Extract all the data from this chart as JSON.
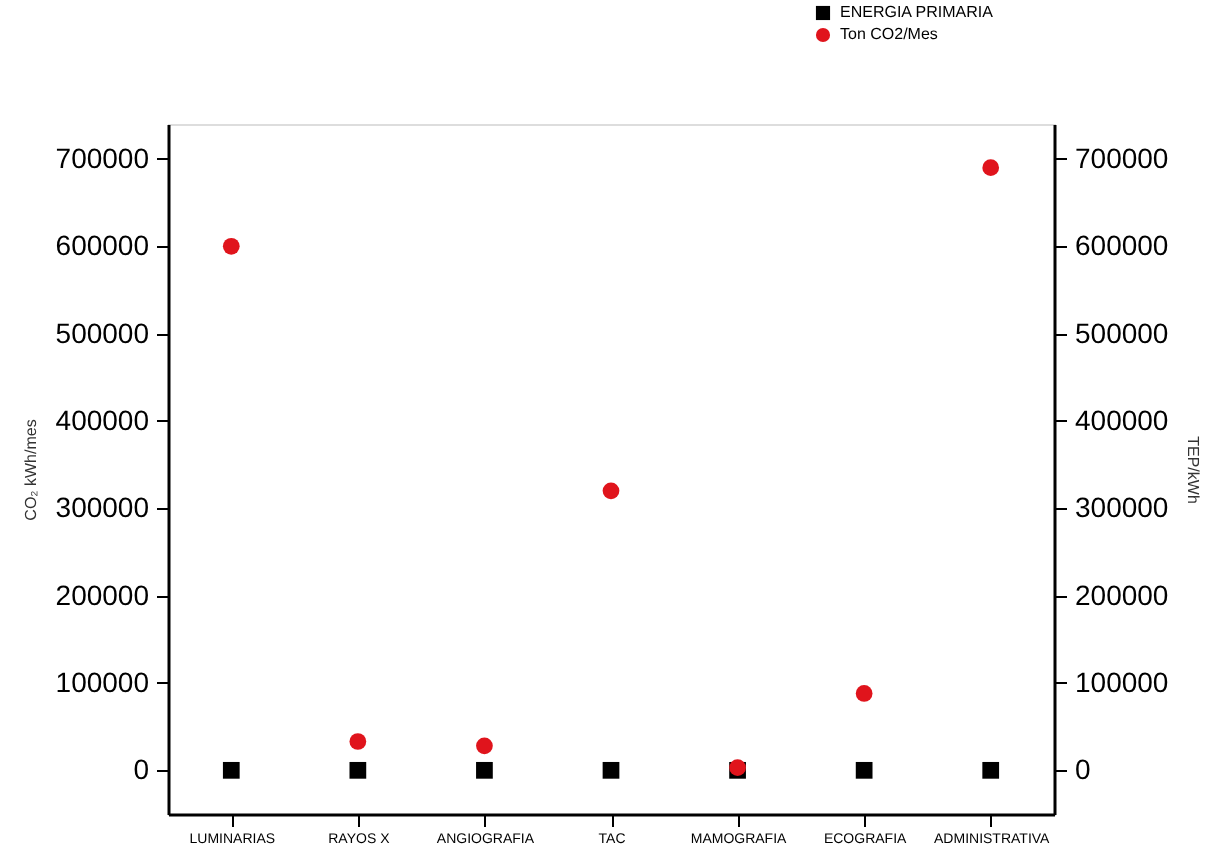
{
  "chart_data": {
    "type": "scatter",
    "categories": [
      "LUMINARIAS",
      "RAYOS X",
      "ANGIOGRAFIA",
      "TAC",
      "MAMOGRAFIA",
      "ECOGRAFIA",
      "ADMINISTRATIVA"
    ],
    "series": [
      {
        "name": "ENERGIA PRIMARIA",
        "color": "#000000",
        "marker": "square",
        "axis": "y2",
        "values": [
          0,
          0,
          0,
          0,
          0,
          0,
          0
        ]
      },
      {
        "name": "Ton CO2/Mes",
        "color": "#e0141c",
        "marker": "circle",
        "values": [
          600000,
          33000,
          28000,
          320000,
          3000,
          88000,
          690000
        ]
      }
    ],
    "ylabel": "CO₂ kWh/mes",
    "y2label": "TEP/kWh",
    "ylim": [
      -50000,
      740000
    ],
    "yticks": [
      0,
      100000,
      200000,
      300000,
      400000,
      500000,
      600000,
      700000
    ],
    "y2lim": [
      -50000,
      740000
    ],
    "y2ticks": [
      0,
      100000,
      200000,
      300000,
      400000,
      500000,
      600000,
      700000
    ],
    "grid": false,
    "legend": "top right"
  }
}
